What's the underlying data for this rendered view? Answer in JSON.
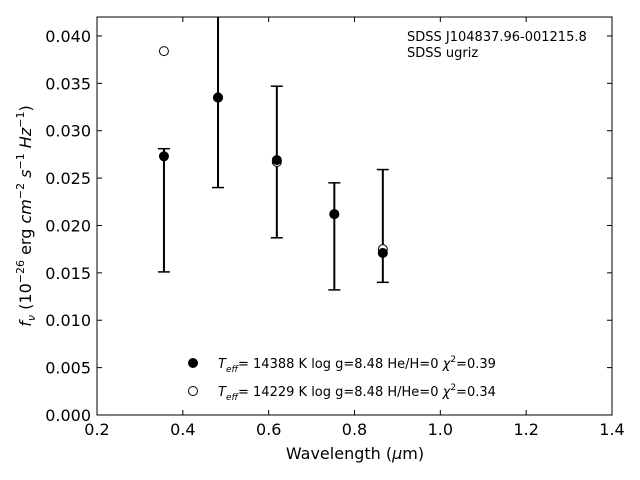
{
  "chart_data": {
    "type": "scatter",
    "title": "",
    "xlabel": "Wavelength (μm)",
    "ylabel": "fν (10⁻²⁶ erg cm⁻² s⁻¹ Hz⁻¹)",
    "xlim": [
      0.2,
      1.4
    ],
    "ylim": [
      0.0,
      0.042
    ],
    "x_ticks": [
      0.2,
      0.4,
      0.6,
      0.8,
      1.0,
      1.2,
      1.4
    ],
    "x_tick_labels": [
      "0.2",
      "0.4",
      "0.6",
      "0.8",
      "1.0",
      "1.2",
      "1.4"
    ],
    "y_ticks": [
      0.0,
      0.005,
      0.01,
      0.015,
      0.02,
      0.025,
      0.03,
      0.035,
      0.04
    ],
    "y_tick_labels": [
      "0.000",
      "0.005",
      "0.010",
      "0.015",
      "0.020",
      "0.025",
      "0.030",
      "0.035",
      "0.040"
    ],
    "grid": false,
    "legend_position": "bottom-center",
    "annotation": {
      "line1": "SDSS J104837.96-001215.8",
      "line2": "SDSS ugriz"
    },
    "observed": {
      "x": [
        0.356,
        0.482,
        0.619,
        0.753,
        0.866
      ],
      "y": [
        0.0273,
        0.0335,
        0.0267,
        0.0212,
        0.0171
      ],
      "yerr_low": [
        0.0151,
        0.024,
        0.0187,
        0.0132,
        0.014
      ],
      "yerr_high": [
        0.0281,
        0.043,
        0.0347,
        0.0245,
        0.0259
      ]
    },
    "series": [
      {
        "name": "He/H=0",
        "marker": "filled-circle",
        "teff": "14388 K",
        "logg": "log g=8.48",
        "comp": "He/H=0",
        "chi2": "=0.39",
        "x": [
          0.356,
          0.482,
          0.619,
          0.753,
          0.866
        ],
        "y": [
          0.0273,
          0.0335,
          0.0269,
          0.0212,
          0.0171
        ]
      },
      {
        "name": "H/He=0",
        "marker": "open-circle",
        "teff": "14229 K",
        "logg": "log g=8.48",
        "comp": "H/He=0",
        "chi2": "=0.34",
        "x": [
          0.356,
          0.482,
          0.619,
          0.753,
          0.866
        ],
        "y": [
          0.0384,
          0.0335,
          0.0267,
          0.0212,
          0.0175
        ]
      }
    ]
  }
}
